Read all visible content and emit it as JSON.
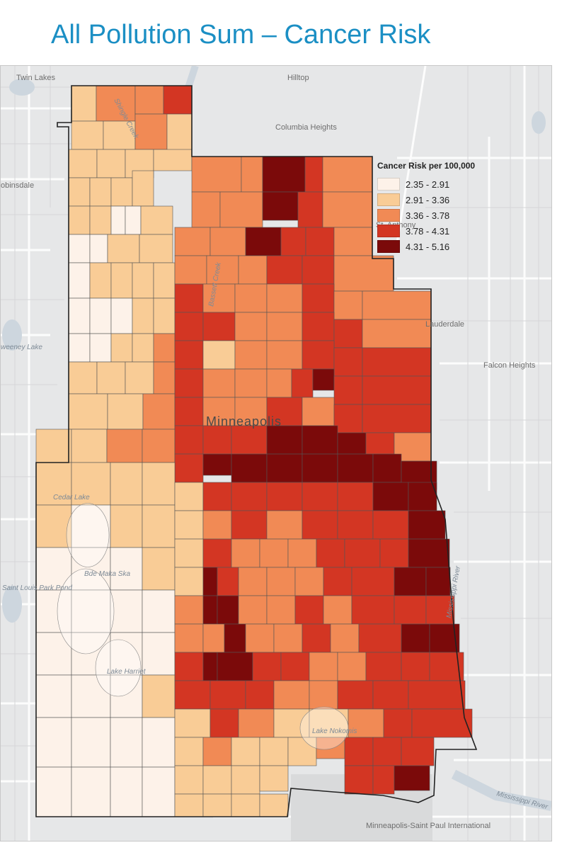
{
  "title": "All Pollution Sum – Cancer Risk",
  "legend": {
    "title": "Cancer Risk per 100,000",
    "classes": [
      {
        "label": "2.35 - 2.91",
        "color": "#fdf2e9"
      },
      {
        "label": "2.91 - 3.36",
        "color": "#f9cc96"
      },
      {
        "label": "3.36 - 3.78",
        "color": "#f18a55"
      },
      {
        "label": "3.78 - 4.31",
        "color": "#d33623"
      },
      {
        "label": "4.31 - 5.16",
        "color": "#7b0a0a"
      }
    ]
  },
  "places": {
    "twin_lakes": "Twin Lakes",
    "hilltop": "Hilltop",
    "columbia_heights": "Columbia Heights",
    "robbinsdale": "obinsdale",
    "st_anthony": "St. Anthony",
    "lauderdale": "Lauderdale",
    "falcon_heights": "Falcon Heights",
    "minneapolis": "Minneapolis",
    "sweeney_lake": "weeney Lake",
    "cedar_lake": "Cedar Lake",
    "bde_maka_ska": "Bde Maka Ska",
    "saint_louis_park_pond": "Saint Louis Park Pond",
    "lake_harriet": "Lake Harriet",
    "lake_nokomis": "Lake Nokomis",
    "mississippi_river": "Mississippi River",
    "mississippi_river_2": "Mississippi River",
    "airport": "Minneapolis-Saint Paul International",
    "shingle_creek": "Shingle Creek",
    "bassett_creek": "Bassett Creek"
  }
}
